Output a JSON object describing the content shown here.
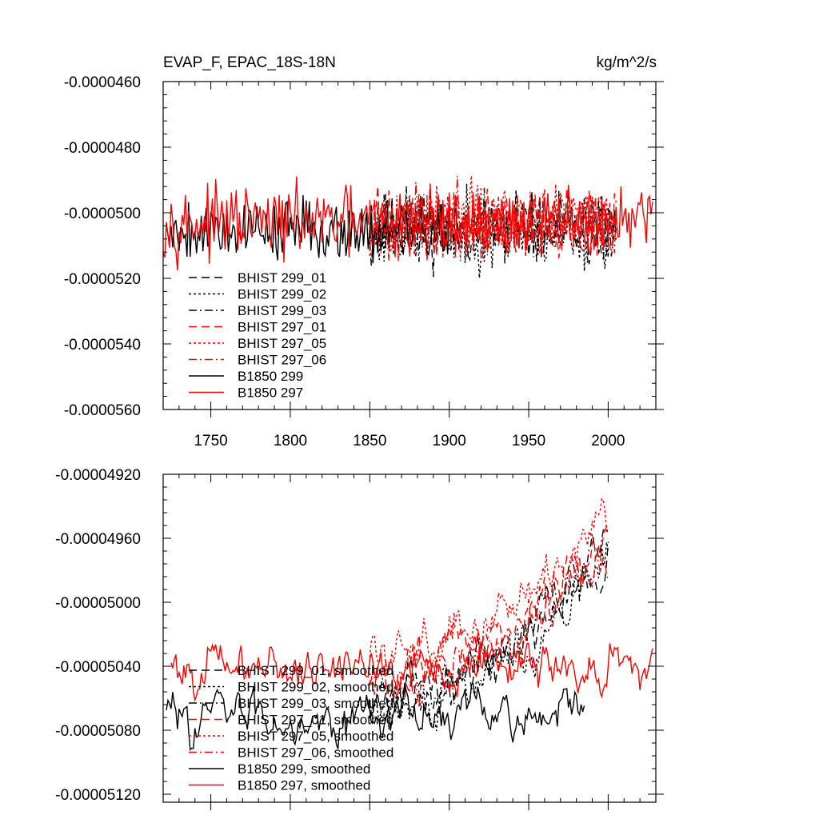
{
  "chart_data": [
    {
      "type": "line",
      "title_left": "EVAP_F, EPAC_18S-18N",
      "title_right": "kg/m^2/s",
      "xlim": [
        1720,
        2030
      ],
      "ylim": [
        -5.6e-05,
        -4.6e-05
      ],
      "x_ticks": [
        1750,
        1800,
        1850,
        1900,
        1950,
        2000
      ],
      "x_tick_labels": [
        "1750",
        "1800",
        "1850",
        "1900",
        "1950",
        "2000"
      ],
      "y_ticks": [
        -4.6e-05,
        -4.8e-05,
        -5e-05,
        -5.2e-05,
        -5.4e-05,
        -5.6e-05
      ],
      "y_tick_labels": [
        "-0.0000460",
        "-0.0000480",
        "-0.0000500",
        "-0.0000520",
        "-0.0000540",
        "-0.0000560"
      ],
      "grid": false,
      "legend_position": "bottom-left",
      "series": [
        {
          "name": "BHIST 299_01",
          "color": "#000000",
          "dash": "longdash",
          "x_range": [
            1850,
            2005
          ],
          "mean": -5.05e-05,
          "amplitude": 1.6e-06,
          "seed": 11
        },
        {
          "name": "BHIST 299_02",
          "color": "#000000",
          "dash": "dot",
          "x_range": [
            1850,
            2005
          ],
          "mean": -5.06e-05,
          "amplitude": 1.6e-06,
          "seed": 23
        },
        {
          "name": "BHIST 299_03",
          "color": "#000000",
          "dash": "dashdot",
          "x_range": [
            1850,
            2005
          ],
          "mean": -5.04e-05,
          "amplitude": 1.6e-06,
          "seed": 37
        },
        {
          "name": "BHIST 297_01",
          "color": "#ff0000",
          "dash": "longdash",
          "x_range": [
            1850,
            2005
          ],
          "mean": -5.03e-05,
          "amplitude": 1.6e-06,
          "seed": 41
        },
        {
          "name": "BHIST 297_05",
          "color": "#ff0000",
          "dash": "dot",
          "x_range": [
            1850,
            2005
          ],
          "mean": -5.02e-05,
          "amplitude": 1.6e-06,
          "seed": 53
        },
        {
          "name": "BHIST 297_06",
          "color": "#ff0000",
          "dash": "dashdot",
          "x_range": [
            1850,
            2005
          ],
          "mean": -5.03e-05,
          "amplitude": 1.6e-06,
          "seed": 67
        },
        {
          "name": "B1850 299",
          "color": "#000000",
          "dash": "solid",
          "x_range": [
            1722,
            1900
          ],
          "mean": -5.05e-05,
          "amplitude": 1.4e-06,
          "seed": 79
        },
        {
          "name": "B1850 297",
          "color": "#ff0000",
          "dash": "solid",
          "x_range": [
            1720,
            2028
          ],
          "mean": -5.03e-05,
          "amplitude": 1.5e-06,
          "seed": 97
        }
      ]
    },
    {
      "type": "line",
      "xlim": [
        1720,
        2030
      ],
      "ylim": [
        -5.125e-05,
        -4.92e-05
      ],
      "x_ticks": [
        1750,
        1800,
        1850,
        1900,
        1950,
        2000
      ],
      "y_ticks": [
        -4.92e-05,
        -4.96e-05,
        -5e-05,
        -5.04e-05,
        -5.08e-05,
        -5.12e-05
      ],
      "y_tick_labels": [
        "-0.00004920",
        "-0.00004960",
        "-0.00005000",
        "-0.00005040",
        "-0.00005080",
        "-0.00005120"
      ],
      "grid": false,
      "legend_position": "bottom-left",
      "series": [
        {
          "name": "BHIST 299_01, smoothed",
          "color": "#000000",
          "dash": "longdash",
          "x_range": [
            1850,
            2000
          ],
          "mean": -5.06e-05,
          "amplitude": 3e-07,
          "trend": 9e-07,
          "seed": 13
        },
        {
          "name": "BHIST 299_02, smoothed",
          "color": "#000000",
          "dash": "dot",
          "x_range": [
            1850,
            2000
          ],
          "mean": -5.07e-05,
          "amplitude": 3e-07,
          "trend": 1e-06,
          "seed": 29
        },
        {
          "name": "BHIST 299_03, smoothed",
          "color": "#000000",
          "dash": "dashdot",
          "x_range": [
            1850,
            2000
          ],
          "mean": -5.06e-05,
          "amplitude": 3e-07,
          "trend": 1e-06,
          "seed": 31
        },
        {
          "name": "BHIST 297_01, smoothed",
          "color": "#ff0000",
          "dash": "longdash",
          "x_range": [
            1850,
            2000
          ],
          "mean": -5.04e-05,
          "amplitude": 3e-07,
          "trend": 8e-07,
          "seed": 43
        },
        {
          "name": "BHIST 297_05, smoothed",
          "color": "#ff0000",
          "dash": "dot",
          "x_range": [
            1850,
            2000
          ],
          "mean": -5.03e-05,
          "amplitude": 3e-07,
          "trend": 9e-07,
          "seed": 59
        },
        {
          "name": "BHIST 297_06, smoothed",
          "color": "#ff0000",
          "dash": "dashdot",
          "x_range": [
            1850,
            2000
          ],
          "mean": -5.05e-05,
          "amplitude": 3e-07,
          "trend": 8e-07,
          "seed": 71
        },
        {
          "name": "B1850 299, smoothed",
          "color": "#000000",
          "dash": "solid",
          "x_range": [
            1722,
            1985
          ],
          "mean": -5.07e-05,
          "amplitude": 3e-07,
          "trend": 0.0,
          "seed": 83
        },
        {
          "name": "B1850 297, smoothed",
          "color": "#ff0000",
          "dash": "solid",
          "x_range": [
            1725,
            2028
          ],
          "mean": -5.04e-05,
          "amplitude": 3e-07,
          "trend": 0.0,
          "seed": 101
        }
      ]
    }
  ]
}
